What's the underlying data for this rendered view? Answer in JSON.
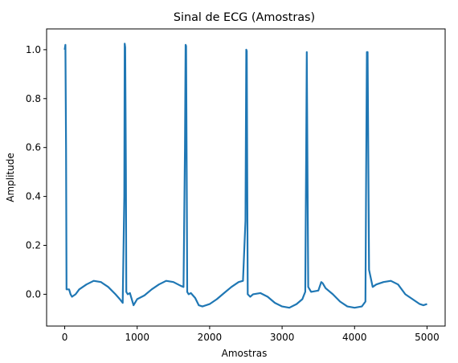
{
  "chart_data": {
    "type": "line",
    "title": "Sinal de ECG (Amostras)",
    "xlabel": "Amostras",
    "ylabel": "Amplitude",
    "xlim": [
      -250,
      5250
    ],
    "ylim": [
      -0.13,
      1.085
    ],
    "xticks": [
      0,
      1000,
      2000,
      3000,
      4000,
      5000
    ],
    "yticks": [
      0.0,
      0.2,
      0.4,
      0.6,
      0.8,
      1.0
    ],
    "xtick_labels": [
      "0",
      "1000",
      "2000",
      "3000",
      "4000",
      "5000"
    ],
    "ytick_labels": [
      "0.0",
      "0.2",
      "0.4",
      "0.6",
      "0.8",
      "1.0"
    ],
    "grid": false,
    "legend": "none",
    "line_color": "#1f77b4",
    "series": [
      {
        "x": [
          0,
          10,
          18,
          25,
          40,
          60,
          80,
          100,
          150,
          200,
          300,
          400,
          500,
          600,
          700,
          760,
          800,
          822,
          828,
          835,
          845,
          850,
          870,
          900,
          950,
          1000,
          1100,
          1200,
          1300,
          1400,
          1500,
          1600,
          1640,
          1660,
          1668,
          1675,
          1685,
          1690,
          1710,
          1740,
          1800,
          1850,
          1900,
          2000,
          2100,
          2200,
          2300,
          2400,
          2460,
          2495,
          2505,
          2512,
          2520,
          2525,
          2560,
          2600,
          2700,
          2800,
          2900,
          3000,
          3100,
          3200,
          3280,
          3320,
          3333,
          3340,
          3350,
          3360,
          3400,
          3500,
          3540,
          3560,
          3600,
          3700,
          3800,
          3900,
          4000,
          4100,
          4150,
          4160,
          4170,
          4180,
          4200,
          4250,
          4300,
          4400,
          4500,
          4600,
          4700,
          4800,
          4900,
          4950,
          5000
        ],
        "y": [
          1.0,
          1.02,
          0.6,
          0.02,
          0.02,
          0.02,
          0.0,
          -0.01,
          0.0,
          0.02,
          0.04,
          0.055,
          0.05,
          0.03,
          0.0,
          -0.02,
          -0.035,
          0.4,
          1.025,
          1.01,
          0.5,
          0.01,
          0.0,
          0.005,
          -0.045,
          -0.02,
          -0.005,
          0.02,
          0.04,
          0.055,
          0.05,
          0.035,
          0.03,
          0.6,
          1.02,
          1.015,
          0.4,
          0.01,
          0.0,
          0.005,
          -0.015,
          -0.045,
          -0.05,
          -0.04,
          -0.02,
          0.005,
          0.03,
          0.05,
          0.055,
          0.3,
          1.0,
          0.995,
          0.4,
          0.0,
          -0.01,
          0.0,
          0.005,
          -0.01,
          -0.035,
          -0.05,
          -0.055,
          -0.04,
          -0.02,
          0.01,
          0.6,
          0.99,
          0.5,
          0.03,
          0.01,
          0.015,
          0.05,
          0.045,
          0.025,
          0.0,
          -0.03,
          -0.05,
          -0.055,
          -0.05,
          -0.03,
          0.5,
          0.99,
          0.99,
          0.1,
          0.03,
          0.04,
          0.05,
          0.055,
          0.04,
          0.0,
          -0.02,
          -0.04,
          -0.045,
          -0.04
        ]
      }
    ]
  }
}
